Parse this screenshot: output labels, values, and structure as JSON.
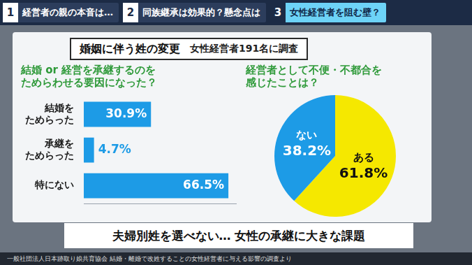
{
  "header": {
    "tabs": [
      {
        "number": "1",
        "label": "経営者の親の本音は…",
        "active": false
      },
      {
        "number": "2",
        "label": "同族継承は効果的？懸念点は",
        "active": false
      },
      {
        "number": "3",
        "label": "女性経営者を阻む壁？",
        "active": true
      }
    ]
  },
  "title": "婚姻に伴う姓の変更",
  "subtitle": "女性経営者191名に調査",
  "chart_data": [
    {
      "type": "bar",
      "orientation": "horizontal",
      "title": [
        "結婚 or 経営を承継するのを",
        "ためらわせる要因になった？"
      ],
      "categories": [
        [
          "結婚を",
          "ためらった"
        ],
        [
          "承継を",
          "ためらった"
        ],
        [
          "特にない"
        ]
      ],
      "values": [
        30.9,
        4.7,
        66.5
      ],
      "value_labels": [
        "30.9%",
        "4.7%",
        "66.5%"
      ],
      "data_labels": true,
      "color": "#1d9be6",
      "xlim": [
        0,
        70
      ],
      "xticks": [],
      "tick_labels": "y",
      "grid": false
    },
    {
      "type": "pie",
      "title": [
        "経営者として不便・不都合を",
        "感じたことは？"
      ],
      "categories": [
        "ある",
        "ない"
      ],
      "values": [
        61.8,
        38.2
      ],
      "value_labels": [
        "61.8%",
        "38.2%"
      ],
      "data_labels": true,
      "colors": [
        "#f5e800",
        "#1d9be6"
      ]
    }
  ],
  "caption": "夫婦別姓を選べない… 女性の承継に大きな課題",
  "source": "一般社団法人日本跡取り娘共育協会 結婚・離婚で改姓することの女性経営者に与える影響の調査より"
}
